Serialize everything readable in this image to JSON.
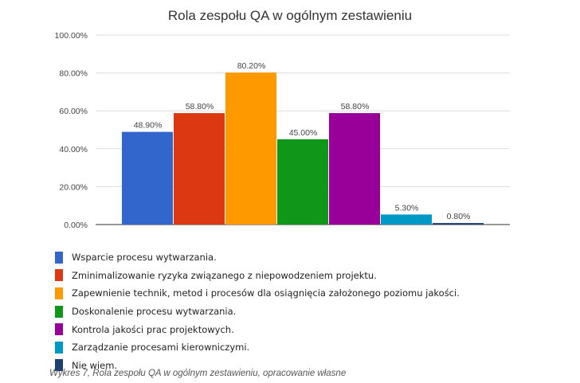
{
  "chart_data": {
    "type": "bar",
    "title": "Rola zespołu QA w ogólnym zestawieniu",
    "xlabel": "",
    "ylabel": "",
    "ylim": [
      0,
      100
    ],
    "yticks": [
      "0.00%",
      "20.00%",
      "40.00%",
      "60.00%",
      "80.00%",
      "100.00%"
    ],
    "grid": true,
    "legend_position": "bottom-left",
    "series": [
      {
        "name": "Wsparcie procesu wytwarzania.",
        "value": 48.9,
        "label": "48.90%",
        "color": "#3366cc"
      },
      {
        "name": "Zminimalizowanie ryzyka związanego z niepowodzeniem projektu.",
        "value": 58.8,
        "label": "58.80%",
        "color": "#dc3912"
      },
      {
        "name": "Zapewnienie technik, metod i procesów dla osiągnięcia założonego poziomu jakości.",
        "value": 80.2,
        "label": "80.20%",
        "color": "#ff9900"
      },
      {
        "name": "Doskonalenie procesu wytwarzania.",
        "value": 45.0,
        "label": "45.00%",
        "color": "#109618"
      },
      {
        "name": "Kontrola jakości prac projektowych.",
        "value": 58.8,
        "label": "58.80%",
        "color": "#990099"
      },
      {
        "name": "Zarządzanie procesami kierowniczymi.",
        "value": 5.3,
        "label": "5.30%",
        "color": "#0099c6"
      },
      {
        "name": "Nie wiem.",
        "value": 0.8,
        "label": "0.80%",
        "color": "#1f3f73"
      }
    ]
  },
  "caption": "Wykres 7, Rola zespołu QA w ogólnym zestawieniu, opracowanie własne"
}
